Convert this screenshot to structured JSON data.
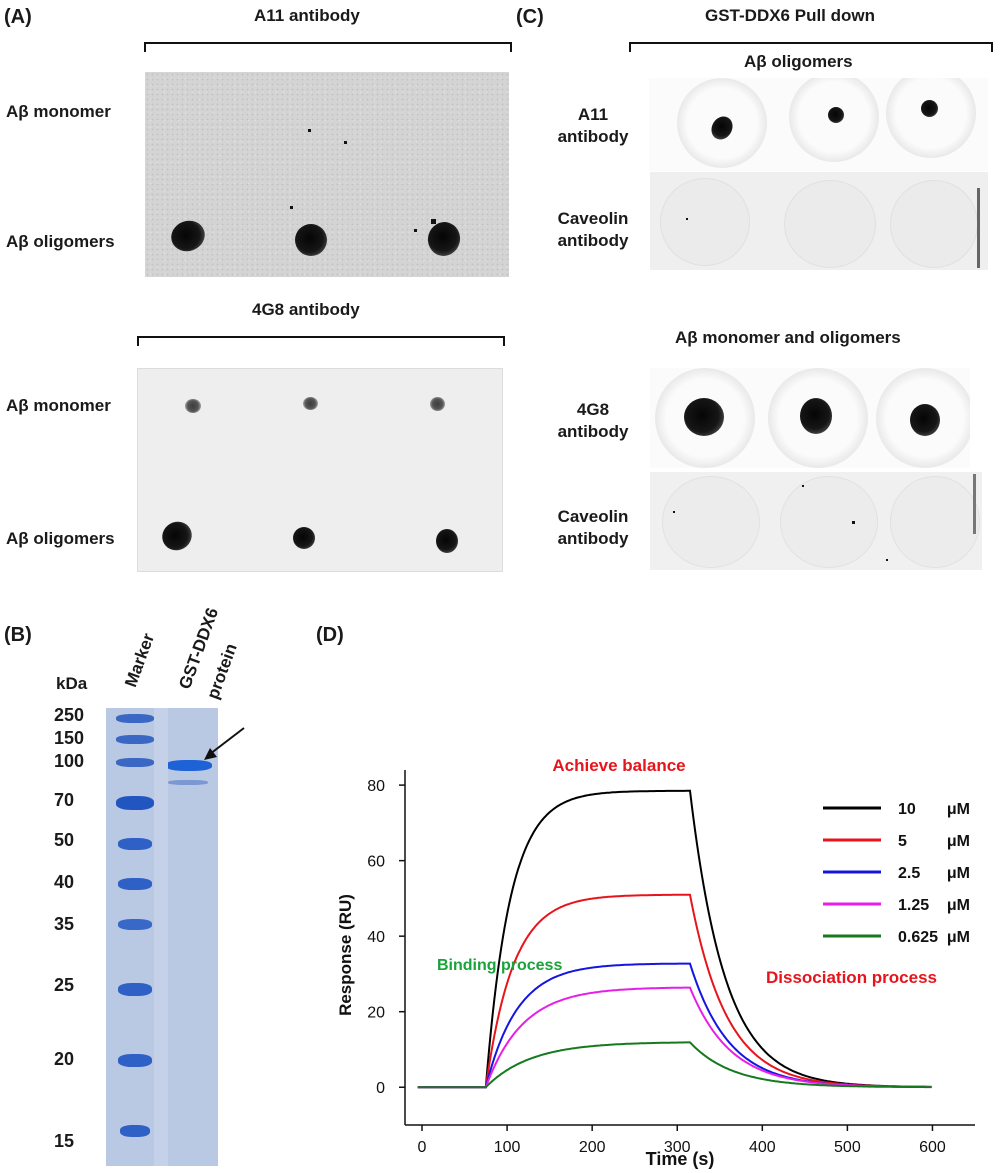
{
  "panels": {
    "a": {
      "letter": "(A)",
      "title_top": "A11 antibody",
      "title_bottom": "4G8 antibody",
      "rows_top": [
        "Aβ monomer",
        "Aβ oligomers"
      ],
      "rows_bottom": [
        "Aβ monomer",
        "Aβ oligomers"
      ]
    },
    "b": {
      "letter": "(B)",
      "unit": "kDa",
      "lanes": [
        "Marker",
        "GST-DDX6",
        "protein"
      ],
      "mw": [
        "250",
        "150",
        "100",
        "70",
        "50",
        "40",
        "35",
        "25",
        "20",
        "15"
      ]
    },
    "c": {
      "letter": "(C)",
      "title": "GST-DDX6 Pull down",
      "section1": "Aβ oligomers",
      "section2": "Aβ monomer and oligomers",
      "rows1": [
        [
          "A11",
          "antibody"
        ],
        [
          "Caveolin",
          "antibody"
        ]
      ],
      "rows2": [
        [
          "4G8",
          "antibody"
        ],
        [
          "Caveolin",
          "antibody"
        ]
      ]
    },
    "d": {
      "letter": "(D)",
      "annotation_top": "Achieve balance",
      "annotation_left": "Binding process",
      "annotation_right": "Dissociation process",
      "annotation_colors": {
        "top": "#e8141b",
        "left": "#19a33a",
        "right": "#e8141b"
      }
    }
  },
  "chart_data": {
    "type": "line",
    "title": "",
    "xlabel": "Time (s)",
    "ylabel": "Response (RU)",
    "xlim": [
      -20,
      650
    ],
    "ylim": [
      -10,
      84
    ],
    "xticks": [
      0,
      100,
      200,
      300,
      400,
      500,
      600
    ],
    "yticks": [
      0,
      20,
      40,
      60,
      80
    ],
    "grid": false,
    "legend_position": "top-right",
    "association_start_s": 75,
    "dissociation_start_s": 315,
    "end_s": 600,
    "series": [
      {
        "name": "10",
        "unit": "μM",
        "color": "#000000",
        "plateau": 78.5
      },
      {
        "name": "5",
        "unit": "μM",
        "color": "#e8141b",
        "plateau": 51
      },
      {
        "name": "2.5",
        "unit": "μM",
        "color": "#1515e0",
        "plateau": 32.8
      },
      {
        "name": "1.25",
        "unit": "μM",
        "color": "#e81ee8",
        "plateau": 26.5
      },
      {
        "name": "0.625",
        "unit": "μM",
        "color": "#157a1e",
        "plateau": 12
      }
    ]
  }
}
